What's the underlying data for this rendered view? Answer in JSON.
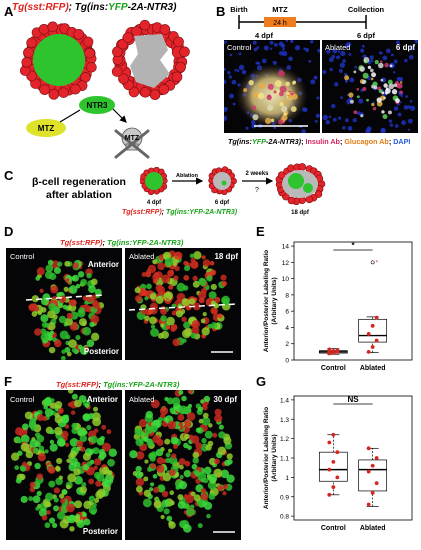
{
  "panels": {
    "A": "A",
    "B": "B",
    "C": "C",
    "D": "D",
    "E": "E",
    "F": "F",
    "G": "G"
  },
  "header_A": {
    "tg1": "Tg(sst:RFP)",
    "sep": "; ",
    "tg2a": "Tg(ins:",
    "tg2b": "YFP",
    "tg2c": "-2A-NTR3)"
  },
  "schema_A": {
    "ntr3": "NTR3",
    "mtz": "MTZ",
    "mtz_skull": "MTZ"
  },
  "timeline_B": {
    "birth": "Birth",
    "mtz": "MTZ",
    "h24": "24 h",
    "collection": "Collection",
    "dpf4": "4 dpf",
    "dpf6": "6 dpf"
  },
  "micro_B": {
    "control": "Control",
    "ablated": "Ablated",
    "age": "6 dpf"
  },
  "caption_B": {
    "p1": "Tg(ins:",
    "p2": "YFP",
    "p3": "-2A-NTR3)",
    "p4": "; ",
    "p5": "Insulin Ab",
    "p6": "; ",
    "p7": "Glucagon Ab",
    "p8": "; ",
    "p9": "DAPI"
  },
  "panel_C": {
    "title_l1": "β-cell regeneration",
    "title_l2": "after ablation",
    "ablation": "Ablation",
    "weeks": "2 weeks",
    "q": "?",
    "d4": "4 dpf",
    "d6": "6 dpf",
    "d18": "18 dpf",
    "tg1": "Tg(sst:RFP)",
    "sep": "; ",
    "tg2": "Tg(ins:YFP-2A-NTR3)"
  },
  "header_D": {
    "tg1": "Tg(sst:RFP)",
    "sep": "; ",
    "tg2": "Tg(ins:YFP-2A-NTR3)"
  },
  "micro_D": {
    "control": "Control",
    "anterior": "Anterior",
    "posterior": "Posterior",
    "ablated": "Ablated",
    "age": "18 dpf"
  },
  "header_F": {
    "tg1": "Tg(sst:RFP)",
    "sep": "; ",
    "tg2": "Tg(ins:YFP-2A-NTR3)"
  },
  "micro_F": {
    "control": "Control",
    "anterior": "Anterior",
    "posterior": "Posterior",
    "ablated": "Ablated",
    "age": "30 dpf"
  },
  "chart_data": [
    {
      "panel": "E",
      "type": "box",
      "ylabel_l1": "Anterior/Posterior Labeling Ratio",
      "ylabel_l2": "(Arbitary Units)",
      "categories": [
        "Control",
        "Ablated"
      ],
      "yticks": [
        0,
        2,
        4,
        6,
        8,
        10,
        12,
        14
      ],
      "ylim": [
        0,
        14.5
      ],
      "significance": "*",
      "boxes": [
        {
          "name": "Control",
          "whisker_low": 0.7,
          "q1": 0.85,
          "median": 1.0,
          "q3": 1.15,
          "whisker_high": 1.4,
          "points": [
            0.8,
            0.9,
            1.0,
            1.05,
            1.1,
            1.2,
            1.3
          ]
        },
        {
          "name": "Ablated",
          "whisker_low": 0.9,
          "q1": 2.2,
          "median": 3.0,
          "q3": 5.0,
          "whisker_high": 5.3,
          "points": [
            1.0,
            1.6,
            2.4,
            3.2,
            4.2,
            5.2
          ],
          "outliers": [
            12.0
          ]
        }
      ]
    },
    {
      "panel": "G",
      "type": "box",
      "ylabel_l1": "Anterior/Posterior Labeling Ratio",
      "ylabel_l2": "(Arbitary Units)",
      "categories": [
        "Control",
        "Ablated"
      ],
      "yticks": [
        0.8,
        0.9,
        1.0,
        1.1,
        1.2,
        1.3,
        1.4
      ],
      "ylim": [
        0.78,
        1.42
      ],
      "significance": "NS",
      "boxes": [
        {
          "name": "Control",
          "whisker_low": 0.91,
          "q1": 0.98,
          "median": 1.04,
          "q3": 1.13,
          "whisker_high": 1.22,
          "points": [
            0.91,
            0.95,
            1.0,
            1.04,
            1.08,
            1.13,
            1.18,
            1.22
          ]
        },
        {
          "name": "Ablated",
          "whisker_low": 0.85,
          "q1": 0.93,
          "median": 1.04,
          "q3": 1.09,
          "whisker_high": 1.15,
          "points": [
            0.86,
            0.92,
            0.97,
            1.03,
            1.06,
            1.1,
            1.15
          ]
        }
      ]
    }
  ]
}
